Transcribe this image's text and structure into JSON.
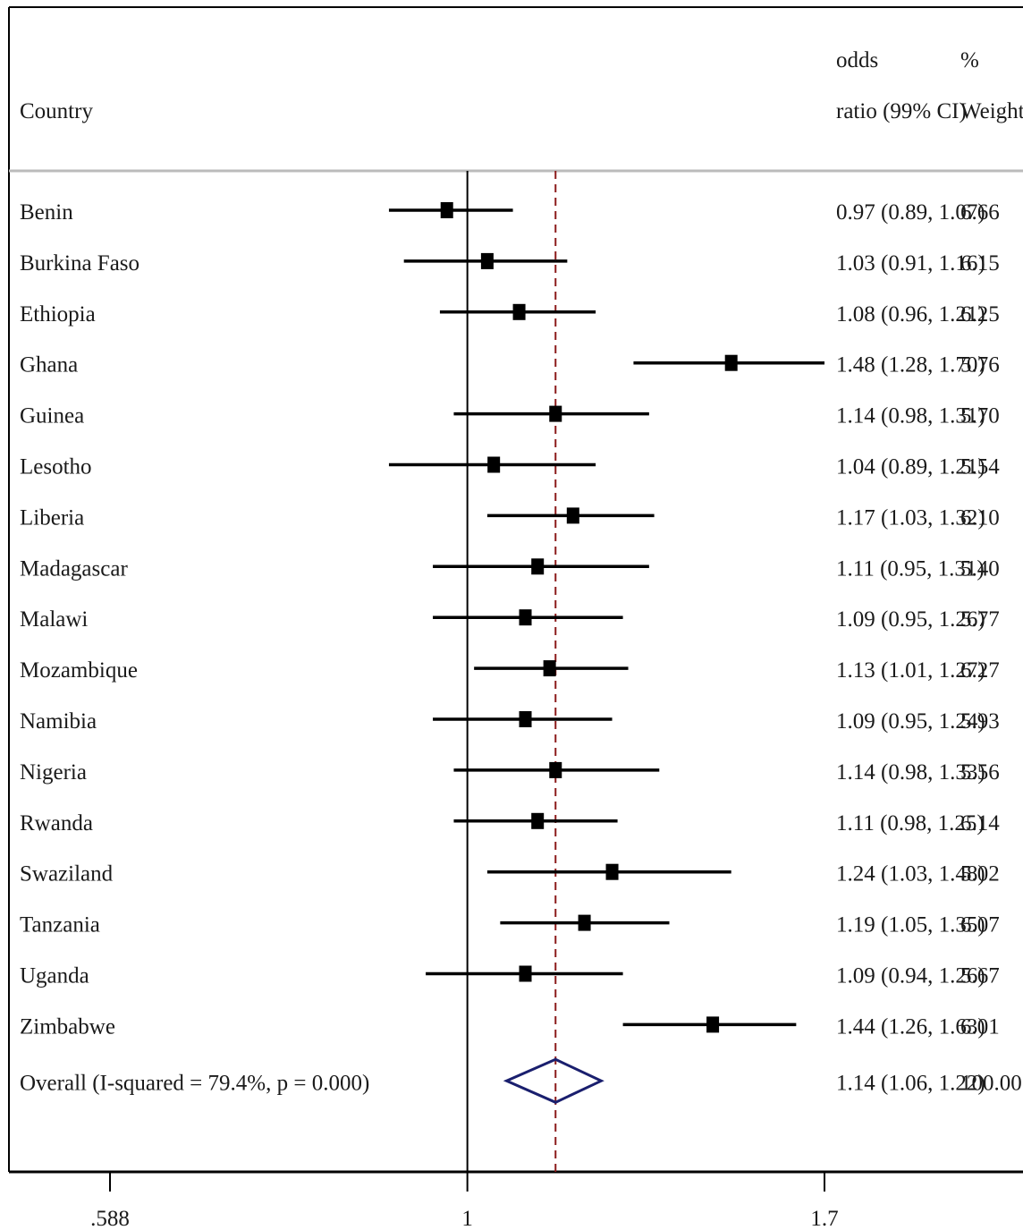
{
  "header": {
    "country_label": "Country",
    "or_label_line1": "odds",
    "or_label_line2": "ratio (99% CI)",
    "weight_label_line1": "%",
    "weight_label_line2": "Weight"
  },
  "colors": {
    "estimate": "#000000",
    "ci_line": "#000000",
    "pooled_line": "#8b1a1a",
    "overall_diamond": "#1a1f6e",
    "header_rule": "#bbbbbb"
  },
  "chart_data": {
    "type": "forest",
    "x_scale": "log",
    "xlim": [
      0.588,
      1.7
    ],
    "x_ticks": [
      0.588,
      1,
      1.7
    ],
    "x_tick_labels": [
      ".588",
      "1",
      "1.7"
    ],
    "null_line": 1,
    "pooled_estimate": 1.14,
    "studies": [
      {
        "country": "Benin",
        "or": 0.97,
        "lo": 0.89,
        "hi": 1.07,
        "or_text": "0.97 (0.89, 1.07)",
        "weight": "6.66"
      },
      {
        "country": "Burkina Faso",
        "or": 1.03,
        "lo": 0.91,
        "hi": 1.16,
        "or_text": "1.03 (0.91, 1.16)",
        "weight": "6.15"
      },
      {
        "country": "Ethiopia",
        "or": 1.08,
        "lo": 0.96,
        "hi": 1.21,
        "or_text": "1.08 (0.96, 1.21)",
        "weight": "6.25"
      },
      {
        "country": "Ghana",
        "or": 1.48,
        "lo": 1.28,
        "hi": 1.7,
        "or_text": "1.48 (1.28, 1.70)",
        "weight": "5.76"
      },
      {
        "country": "Guinea",
        "or": 1.14,
        "lo": 0.98,
        "hi": 1.31,
        "or_text": "1.14 (0.98, 1.31)",
        "weight": "5.70"
      },
      {
        "country": "Lesotho",
        "or": 1.04,
        "lo": 0.89,
        "hi": 1.21,
        "or_text": "1.04 (0.89, 1.21)",
        "weight": "5.54"
      },
      {
        "country": "Liberia",
        "or": 1.17,
        "lo": 1.03,
        "hi": 1.32,
        "or_text": "1.17 (1.03, 1.32)",
        "weight": "6.10"
      },
      {
        "country": "Madagascar",
        "or": 1.11,
        "lo": 0.95,
        "hi": 1.31,
        "or_text": "1.11 (0.95, 1.31)",
        "weight": "5.40"
      },
      {
        "country": "Malawi",
        "or": 1.09,
        "lo": 0.95,
        "hi": 1.26,
        "or_text": "1.09 (0.95, 1.26)",
        "weight": "5.77"
      },
      {
        "country": "Mozambique",
        "or": 1.13,
        "lo": 1.01,
        "hi": 1.27,
        "or_text": "1.13 (1.01, 1.27)",
        "weight": "6.27"
      },
      {
        "country": "Namibia",
        "or": 1.09,
        "lo": 0.95,
        "hi": 1.24,
        "or_text": "1.09 (0.95, 1.24)",
        "weight": "5.93"
      },
      {
        "country": "Nigeria",
        "or": 1.14,
        "lo": 0.98,
        "hi": 1.33,
        "or_text": "1.14 (0.98, 1.33)",
        "weight": "5.56"
      },
      {
        "country": "Rwanda",
        "or": 1.11,
        "lo": 0.98,
        "hi": 1.25,
        "or_text": "1.11 (0.98, 1.25)",
        "weight": "6.14"
      },
      {
        "country": "Swaziland",
        "or": 1.24,
        "lo": 1.03,
        "hi": 1.48,
        "or_text": "1.24 (1.03, 1.48)",
        "weight": "5.02"
      },
      {
        "country": "Tanzania",
        "or": 1.19,
        "lo": 1.05,
        "hi": 1.35,
        "or_text": "1.19 (1.05, 1.35)",
        "weight": "6.07"
      },
      {
        "country": "Uganda",
        "or": 1.09,
        "lo": 0.94,
        "hi": 1.26,
        "or_text": "1.09 (0.94, 1.26)",
        "weight": "5.67"
      },
      {
        "country": "Zimbabwe",
        "or": 1.44,
        "lo": 1.26,
        "hi": 1.63,
        "or_text": "1.44 (1.26, 1.63)",
        "weight": "6.01"
      }
    ],
    "overall": {
      "label": "Overall  (I-squared = 79.4%, p = 0.000)",
      "or": 1.14,
      "lo": 1.06,
      "hi": 1.22,
      "or_text": "1.14 (1.06, 1.22)",
      "weight": "100.00"
    }
  }
}
